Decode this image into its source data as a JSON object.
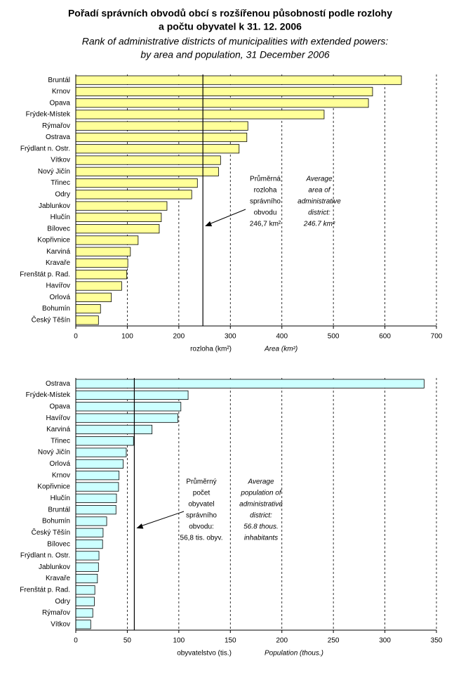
{
  "title": {
    "cs": [
      "Pořadí správních obvodů obcí s rozšířenou působností podle rozlohy",
      "a počtu obyvatel k 31. 12. 2006"
    ],
    "en": [
      "Rank of administrative districts of municipalities with extended powers:",
      "by area and population, 31 December 2006"
    ]
  },
  "chart_data": [
    {
      "type": "bar",
      "orientation": "horizontal",
      "color": "#ffff99",
      "categories": [
        "Bruntál",
        "Krnov",
        "Opava",
        "Frýdek-Místek",
        "Rýmařov",
        "Ostrava",
        "Frýdlant n. Ostr.",
        "Vítkov",
        "Nový Jičín",
        "Třinec",
        "Odry",
        "Jablunkov",
        "Hlučín",
        "Bílovec",
        "Kopřivnice",
        "Karviná",
        "Kravaře",
        "Frenštát p. Rad.",
        "Havířov",
        "Orlová",
        "Bohumín",
        "Český Těšín"
      ],
      "values": [
        632,
        576,
        568,
        482,
        334,
        332,
        317,
        281,
        277,
        236,
        225,
        177,
        166,
        162,
        121,
        106,
        101,
        99,
        89,
        69,
        48,
        44
      ],
      "xlim": [
        0,
        700
      ],
      "xticks": [
        0,
        100,
        200,
        300,
        400,
        500,
        600,
        700
      ],
      "grid": true,
      "average": 246.7,
      "xlabel": {
        "cs": "rozloha (km²)",
        "en": "Area (km²)"
      },
      "annotation": {
        "cs": [
          "Průměrná",
          "rozloha",
          "správního",
          "obvodu",
          "246,7 km²"
        ],
        "en": [
          "Average",
          "area of",
          "administrative",
          "district:",
          "246.7 km²"
        ]
      }
    },
    {
      "type": "bar",
      "orientation": "horizontal",
      "color": "#ccffff",
      "categories": [
        "Ostrava",
        "Frýdek-Místek",
        "Opava",
        "Havířov",
        "Karviná",
        "Třinec",
        "Nový Jičín",
        "Orlová",
        "Krnov",
        "Kopřivnice",
        "Hlučín",
        "Bruntál",
        "Bohumín",
        "Český Těšín",
        "Bílovec",
        "Frýdlant n. Ostr.",
        "Jablunkov",
        "Kravaře",
        "Frenštát p. Rad.",
        "Odry",
        "Rýmařov",
        "Vítkov"
      ],
      "values": [
        338,
        109,
        102,
        99,
        74,
        56,
        49,
        46,
        42,
        41.5,
        39.5,
        39,
        30,
        26.5,
        26,
        22.5,
        22,
        21,
        18.5,
        18,
        16.5,
        14.5
      ],
      "xlim": [
        0,
        350
      ],
      "xticks": [
        0,
        50,
        100,
        150,
        200,
        250,
        300,
        350
      ],
      "grid": true,
      "average": 56.8,
      "xlabel": {
        "cs": "obyvatelstvo (tis.)",
        "en": "Population (thous.)"
      },
      "annotation": {
        "cs": [
          "Průměrný",
          "počet",
          "obyvatel",
          "správního",
          "obvodu:",
          "56,8 tis. obyv."
        ],
        "en": [
          "Average",
          "population of",
          "administrative",
          "district:",
          "56.8 thous.",
          "inhabitants"
        ]
      }
    }
  ]
}
